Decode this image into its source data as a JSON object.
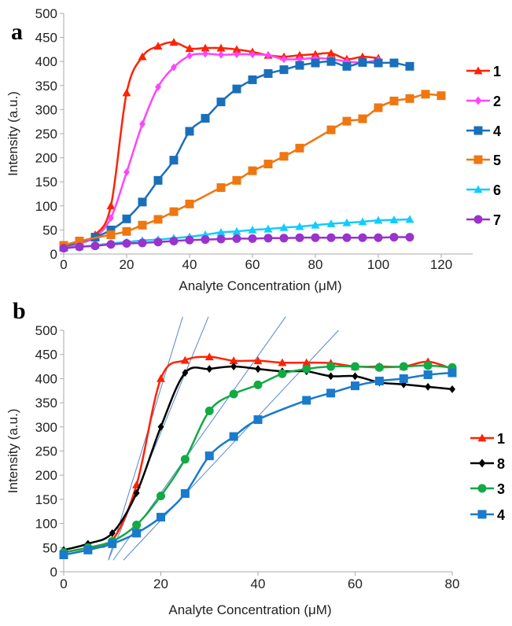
{
  "chart_data": [
    {
      "type": "line",
      "panel_label": "a",
      "xlabel": "Analyte Concentration (μM)",
      "ylabel": "Intensity (a.u.)",
      "xlim": [
        0,
        130
      ],
      "ylim": [
        0,
        500
      ],
      "xticks": [
        0,
        20,
        40,
        60,
        80,
        100,
        120
      ],
      "yticks": [
        0,
        50,
        100,
        150,
        200,
        250,
        300,
        350,
        400,
        450,
        500
      ],
      "grid": false,
      "legend_position": "right",
      "series": [
        {
          "name": "1",
          "color": "#ff2200",
          "marker": "triangle",
          "x": [
            0,
            5,
            10,
            15,
            20,
            25,
            30,
            35,
            40,
            45,
            50,
            55,
            60,
            65,
            70,
            75,
            80,
            85,
            90,
            95,
            100
          ],
          "y": [
            15,
            25,
            40,
            100,
            335,
            410,
            432,
            440,
            427,
            428,
            428,
            425,
            420,
            413,
            410,
            413,
            415,
            417,
            405,
            410,
            407
          ]
        },
        {
          "name": "2",
          "color": "#ff44ff",
          "marker": "diamond",
          "x": [
            0,
            5,
            10,
            15,
            20,
            25,
            30,
            35,
            40,
            45,
            50,
            55,
            60,
            65,
            70,
            75,
            80,
            85,
            90,
            95,
            100
          ],
          "y": [
            12,
            22,
            35,
            75,
            170,
            270,
            347,
            388,
            412,
            416,
            414,
            415,
            415,
            413,
            405,
            405,
            407,
            405,
            400,
            398,
            403
          ]
        },
        {
          "name": "4",
          "color": "#1a6fba",
          "marker": "square",
          "x": [
            0,
            5,
            10,
            15,
            20,
            25,
            30,
            35,
            40,
            45,
            50,
            55,
            60,
            65,
            70,
            75,
            80,
            85,
            90,
            95,
            100,
            105,
            110
          ],
          "y": [
            15,
            25,
            35,
            50,
            73,
            108,
            153,
            195,
            255,
            282,
            316,
            343,
            362,
            375,
            383,
            392,
            397,
            400,
            390,
            398,
            397,
            397,
            390
          ]
        },
        {
          "name": "5",
          "color": "#ee7711",
          "marker": "square",
          "x": [
            0,
            5,
            15,
            20,
            25,
            30,
            35,
            40,
            50,
            55,
            60,
            65,
            70,
            75,
            85,
            90,
            95,
            100,
            105,
            110,
            115,
            120
          ],
          "y": [
            18,
            27,
            40,
            47,
            60,
            72,
            88,
            104,
            138,
            153,
            173,
            187,
            203,
            220,
            258,
            276,
            281,
            304,
            318,
            323,
            332,
            329
          ]
        },
        {
          "name": "6",
          "color": "#11ccff",
          "marker": "triangle",
          "x": [
            0,
            5,
            10,
            15,
            20,
            25,
            30,
            35,
            40,
            45,
            50,
            55,
            60,
            65,
            70,
            75,
            80,
            85,
            90,
            95,
            100,
            105,
            110
          ],
          "y": [
            12,
            15,
            18,
            22,
            25,
            28,
            30,
            33,
            36,
            40,
            45,
            47,
            50,
            52,
            55,
            57,
            60,
            63,
            65,
            67,
            70,
            71,
            72
          ]
        },
        {
          "name": "7",
          "color": "#9933cc",
          "marker": "circle",
          "x": [
            0,
            5,
            10,
            15,
            20,
            25,
            30,
            35,
            40,
            45,
            50,
            55,
            60,
            65,
            70,
            75,
            80,
            85,
            90,
            95,
            100,
            105,
            110
          ],
          "y": [
            12,
            15,
            17,
            20,
            22,
            23,
            25,
            27,
            29,
            30,
            31,
            32,
            32,
            33,
            33,
            34,
            34,
            34,
            34,
            34,
            34,
            35,
            35
          ]
        }
      ]
    },
    {
      "type": "line",
      "panel_label": "b",
      "xlabel": "Analyte Concentration (μM)",
      "ylabel": "Intensity (a.u.)",
      "xlim": [
        0,
        80
      ],
      "ylim": [
        0,
        500
      ],
      "xticks": [
        0,
        20,
        40,
        60,
        80
      ],
      "yticks": [
        0,
        50,
        100,
        150,
        200,
        250,
        300,
        350,
        400,
        450,
        500
      ],
      "grid": false,
      "legend_position": "right",
      "series": [
        {
          "name": "1",
          "color": "#ff2200",
          "marker": "triangle",
          "x": [
            0,
            5,
            10,
            15,
            20,
            25,
            30,
            35,
            40,
            45,
            50,
            55,
            60,
            65,
            70,
            75,
            80
          ],
          "y": [
            40,
            50,
            65,
            180,
            400,
            438,
            445,
            437,
            437,
            433,
            433,
            432,
            425,
            425,
            425,
            435,
            420
          ]
        },
        {
          "name": "8",
          "color": "#000000",
          "marker": "diamond",
          "x": [
            0,
            5,
            10,
            15,
            20,
            25,
            30,
            35,
            40,
            45,
            50,
            55,
            60,
            65,
            70,
            75,
            80
          ],
          "y": [
            45,
            58,
            80,
            163,
            300,
            412,
            420,
            425,
            420,
            415,
            415,
            405,
            405,
            392,
            388,
            383,
            378
          ]
        },
        {
          "name": "3",
          "color": "#11aa44",
          "marker": "circle",
          "x": [
            0,
            5,
            10,
            15,
            20,
            25,
            30,
            35,
            40,
            45,
            50,
            55,
            60,
            65,
            70,
            75,
            80
          ],
          "y": [
            40,
            50,
            63,
            97,
            157,
            233,
            333,
            368,
            387,
            410,
            420,
            425,
            425,
            423,
            425,
            427,
            423
          ]
        },
        {
          "name": "4",
          "color": "#1a7acc",
          "marker": "square",
          "x": [
            0,
            5,
            10,
            15,
            20,
            25,
            30,
            35,
            40,
            50,
            55,
            60,
            65,
            70,
            75,
            80
          ],
          "y": [
            35,
            45,
            58,
            80,
            113,
            162,
            240,
            280,
            315,
            355,
            370,
            385,
            395,
            400,
            408,
            412
          ]
        }
      ],
      "tangent_lines": [
        {
          "color": "#5588cc",
          "from": [
            9.2,
            24
          ],
          "to": [
            24.5,
            528
          ]
        },
        {
          "color": "#5588cc",
          "from": [
            9.2,
            24
          ],
          "to": [
            29.8,
            528
          ]
        },
        {
          "color": "#5588cc",
          "from": [
            10.2,
            24
          ],
          "to": [
            45.7,
            528
          ]
        },
        {
          "color": "#5588cc",
          "from": [
            12.3,
            24
          ],
          "to": [
            56.6,
            500
          ]
        }
      ]
    }
  ]
}
